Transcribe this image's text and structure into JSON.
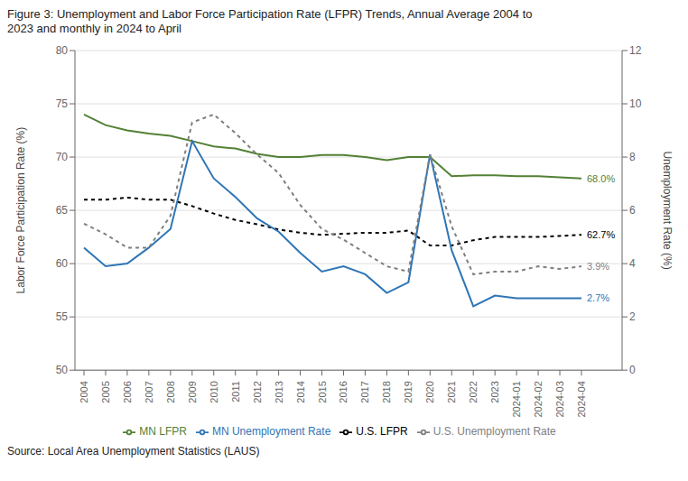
{
  "chart_data": {
    "type": "line",
    "title": "Figure 3: Unemployment and Labor Force Participation Rate (LFPR) Trends, Annual Average 2004 to\n2023 and monthly in 2024 to April",
    "source": "Source: Local Area Unemployment Statistics (LAUS)",
    "categories": [
      "2004",
      "2005",
      "2006",
      "2007",
      "2008",
      "2009",
      "2010",
      "2011",
      "2012",
      "2013",
      "2014",
      "2015",
      "2016",
      "2017",
      "2018",
      "2019",
      "2020",
      "2021",
      "2022",
      "2023",
      "2024-01",
      "2024-02",
      "2024-03",
      "2024-04"
    ],
    "series": [
      {
        "name": "MN LFPR",
        "color": "#538135",
        "line_style": "solid",
        "axis": "y",
        "values": [
          74.0,
          73.0,
          72.5,
          72.2,
          72.0,
          71.5,
          71.0,
          70.8,
          70.3,
          70.0,
          70.0,
          70.2,
          70.2,
          70.0,
          69.7,
          70.0,
          70.0,
          68.2,
          68.3,
          68.3,
          68.2,
          68.2,
          68.1,
          68.0
        ]
      },
      {
        "name": "U.S. LFPR",
        "color": "#000000",
        "line_style": "dashed",
        "axis": "y",
        "values": [
          66.0,
          66.0,
          66.2,
          66.0,
          66.0,
          65.4,
          64.7,
          64.1,
          63.7,
          63.2,
          62.9,
          62.7,
          62.8,
          62.9,
          62.9,
          63.1,
          61.7,
          61.7,
          62.2,
          62.5,
          62.5,
          62.5,
          62.6,
          62.7
        ]
      },
      {
        "name": "MN Unemployment Rate",
        "color": "#2e75b6",
        "line_style": "solid",
        "axis": "y2",
        "values": [
          4.6,
          3.9,
          4.0,
          4.6,
          5.3,
          8.6,
          7.2,
          6.5,
          5.7,
          5.2,
          4.4,
          3.7,
          3.9,
          3.6,
          2.9,
          3.3,
          8.1,
          4.5,
          2.4,
          2.8,
          2.7,
          2.7,
          2.7,
          2.7
        ]
      },
      {
        "name": "U.S. Unemployment Rate",
        "color": "#7f7f7f",
        "line_style": "dashed",
        "axis": "y2",
        "values": [
          5.5,
          5.1,
          4.6,
          4.6,
          5.8,
          9.3,
          9.6,
          8.9,
          8.1,
          7.4,
          6.2,
          5.3,
          4.9,
          4.4,
          3.9,
          3.7,
          8.1,
          5.4,
          3.6,
          3.7,
          3.7,
          3.9,
          3.8,
          3.9
        ]
      }
    ],
    "ylabel": "Labor Force Participation Rate (%)",
    "y2label": "Unemployment Rate (%)",
    "ylim": [
      50,
      80
    ],
    "yticks": [
      50,
      55,
      60,
      65,
      70,
      75,
      80
    ],
    "y2lim": [
      0,
      12
    ],
    "y2ticks": [
      0,
      2,
      4,
      6,
      8,
      10,
      12
    ],
    "grid": true,
    "legend": "bottom",
    "annotations": [
      {
        "text": "68.0%",
        "x": "2024-04",
        "y": 68.0,
        "axis": "y",
        "color": "#538135"
      },
      {
        "text": "62.7%",
        "x": "2024-04",
        "y": 62.7,
        "axis": "y",
        "color": "#000000"
      },
      {
        "text": "3.9%",
        "x": "2024-04",
        "y": 3.9,
        "axis": "y2",
        "color": "#7f7f7f"
      },
      {
        "text": "2.7%",
        "x": "2024-04",
        "y": 2.7,
        "axis": "y2",
        "color": "#2e75b6"
      }
    ]
  }
}
